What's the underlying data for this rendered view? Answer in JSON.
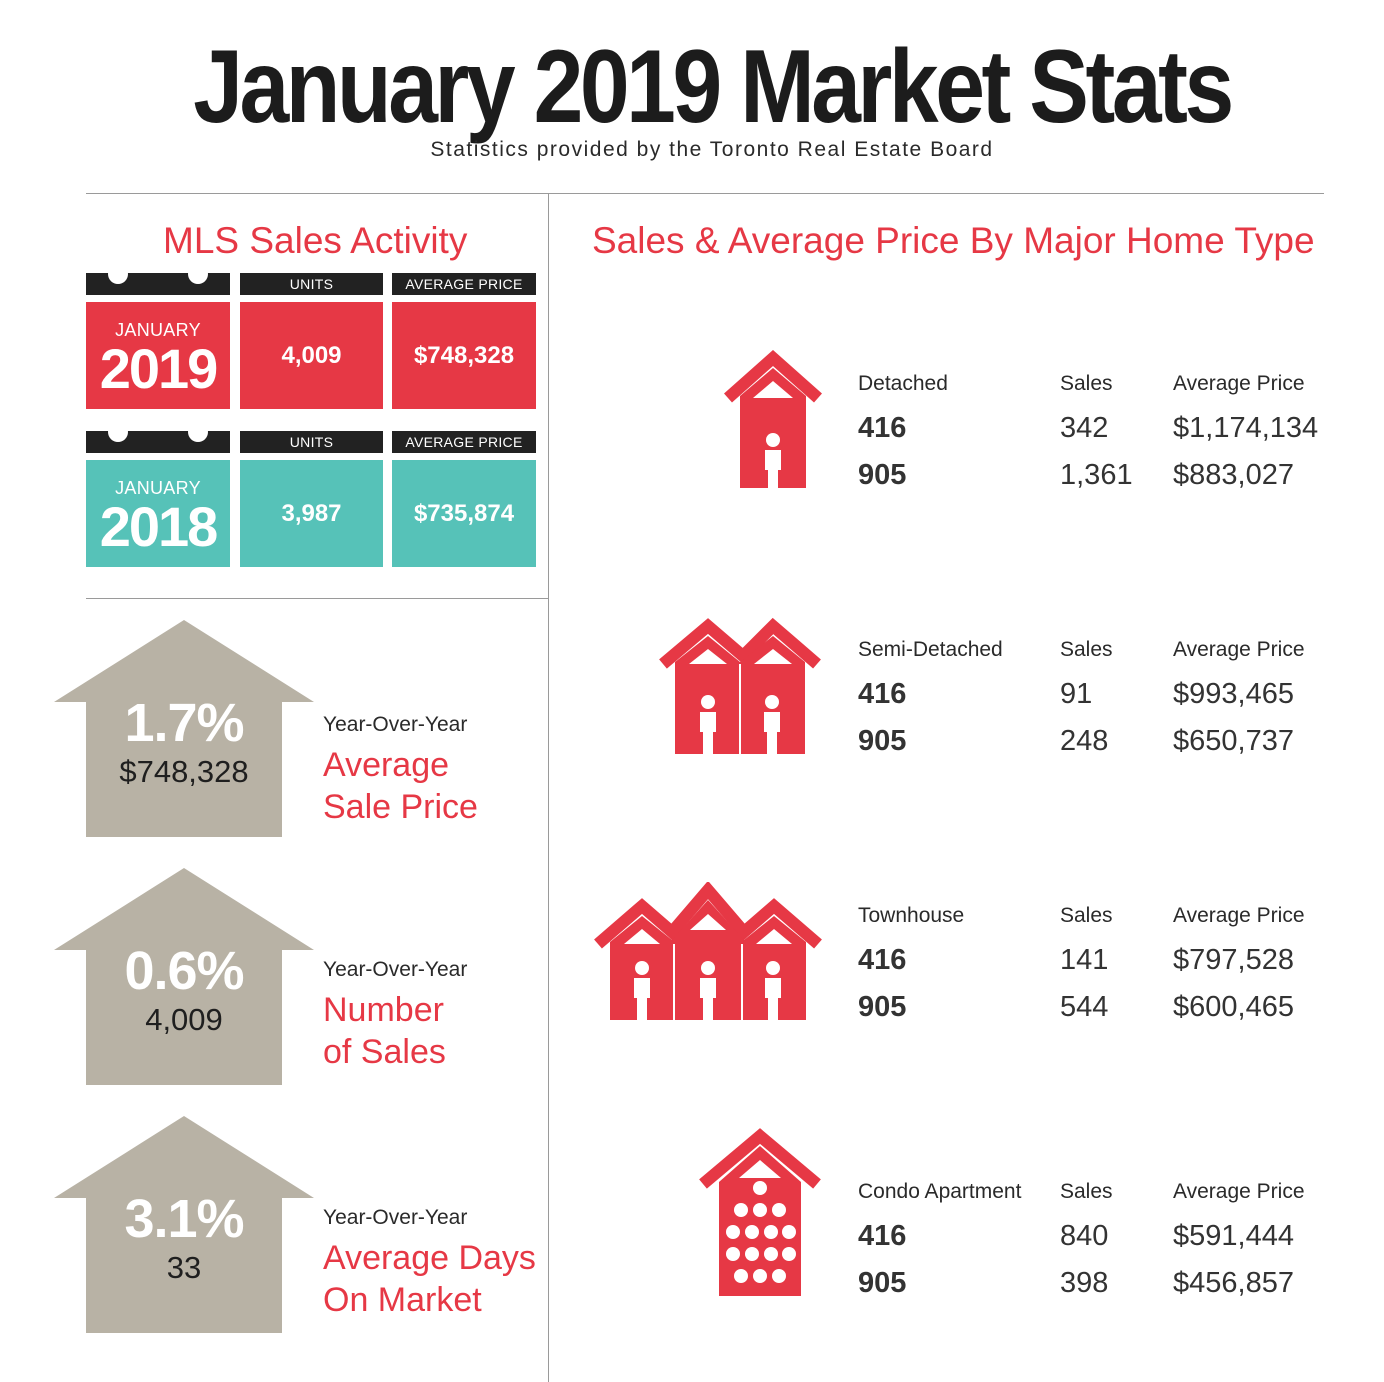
{
  "header": {
    "title": "January 2019 Market Stats",
    "subtitle": "Statistics provided by the Toronto Real Estate Board"
  },
  "mls": {
    "title": "MLS Sales Activity",
    "rows": [
      {
        "month": "JANUARY",
        "year": "2019",
        "units_label": "UNITS",
        "price_label": "AVERAGE PRICE",
        "units": "4,009",
        "price": "$748,328",
        "color": "#e63845"
      },
      {
        "month": "JANUARY",
        "year": "2018",
        "units_label": "UNITS",
        "price_label": "AVERAGE PRICE",
        "units": "3,987",
        "price": "$735,874",
        "color": "#56c2b8"
      }
    ]
  },
  "yoy": [
    {
      "percent": "1.7%",
      "value": "$748,328",
      "label": "Year-Over-Year",
      "desc1": "Average",
      "desc2": "Sale Price"
    },
    {
      "percent": "0.6%",
      "value": "4,009",
      "label": "Year-Over-Year",
      "desc1": "Number",
      "desc2": "of Sales"
    },
    {
      "percent": "3.1%",
      "value": "33",
      "label": "Year-Over-Year",
      "desc1": "Average Days",
      "desc2": "On Market"
    }
  ],
  "home_types": {
    "title": "Sales & Average Price By Major Home Type",
    "sales_label": "Sales",
    "price_label": "Average Price",
    "types": [
      {
        "name": "Detached",
        "icon": "detached-house-icon",
        "rows": [
          {
            "area": "416",
            "sales": "342",
            "price": "$1,174,134"
          },
          {
            "area": "905",
            "sales": "1,361",
            "price": "$883,027"
          }
        ]
      },
      {
        "name": "Semi-Detached",
        "icon": "semi-detached-house-icon",
        "rows": [
          {
            "area": "416",
            "sales": "91",
            "price": "$993,465"
          },
          {
            "area": "905",
            "sales": "248",
            "price": "$650,737"
          }
        ]
      },
      {
        "name": "Townhouse",
        "icon": "townhouse-icon",
        "rows": [
          {
            "area": "416",
            "sales": "141",
            "price": "$797,528"
          },
          {
            "area": "905",
            "sales": "544",
            "price": "$600,465"
          }
        ]
      },
      {
        "name": "Condo Apartment",
        "icon": "condo-apartment-icon",
        "rows": [
          {
            "area": "416",
            "sales": "840",
            "price": "$591,444"
          },
          {
            "area": "905",
            "sales": "398",
            "price": "$456,857"
          }
        ]
      }
    ]
  },
  "colors": {
    "accent": "#e63845",
    "teal": "#56c2b8",
    "arrow": "#b8b2a5",
    "dark": "#222222"
  }
}
